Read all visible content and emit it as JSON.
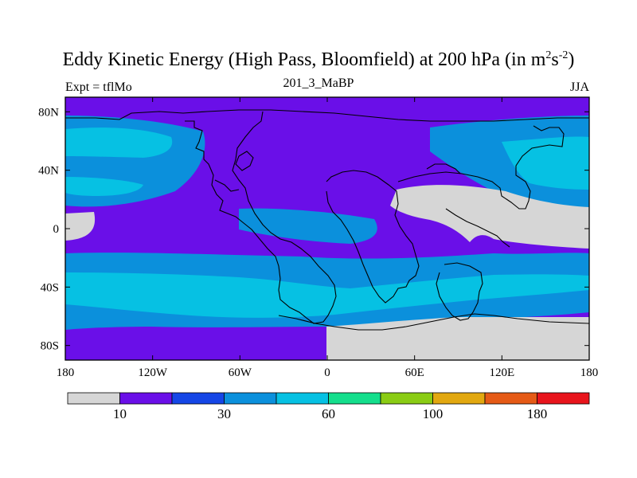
{
  "title": {
    "main": "Eddy Kinetic Energy (High Pass, Bloomfield) at 200 hPa (in m",
    "sup1": "2",
    "mid": "s",
    "sup2": "-2",
    "end": ")"
  },
  "subtitle": {
    "left": "Expt = tflMo",
    "center": "201_3_MaBP",
    "right": "JJA"
  },
  "map": {
    "lon_range": [
      -180,
      180
    ],
    "lat_range": [
      -90,
      90
    ],
    "x_ticks": [
      {
        "value": -180,
        "label": "180"
      },
      {
        "value": -120,
        "label": "120W"
      },
      {
        "value": -60,
        "label": "60W"
      },
      {
        "value": 0,
        "label": "0"
      },
      {
        "value": 60,
        "label": "60E"
      },
      {
        "value": 120,
        "label": "120E"
      },
      {
        "value": 180,
        "label": "180"
      }
    ],
    "y_ticks": [
      {
        "value": 80,
        "label": "80N"
      },
      {
        "value": 40,
        "label": "40N"
      },
      {
        "value": 0,
        "label": "0"
      },
      {
        "value": -40,
        "label": "40S"
      },
      {
        "value": -80,
        "label": "80S"
      }
    ],
    "colors": {
      "below": "#d6d6d6",
      "lev1": "#6a0fe8",
      "lev2": "#1546e6",
      "lev3": "#0b90dc",
      "lev4": "#06c1e3"
    }
  },
  "colorbar": {
    "colors": [
      "#d6d6d6",
      "#6a0fe8",
      "#1546e6",
      "#0b90dc",
      "#06c1e3",
      "#14de8c",
      "#8acc14",
      "#e2a810",
      "#e55a16",
      "#e8141c"
    ],
    "labels": [
      {
        "boundary": 1,
        "text": "10"
      },
      {
        "boundary": 3,
        "text": "30"
      },
      {
        "boundary": 5,
        "text": "60"
      },
      {
        "boundary": 7,
        "text": "100"
      },
      {
        "boundary": 9,
        "text": "180"
      }
    ]
  }
}
